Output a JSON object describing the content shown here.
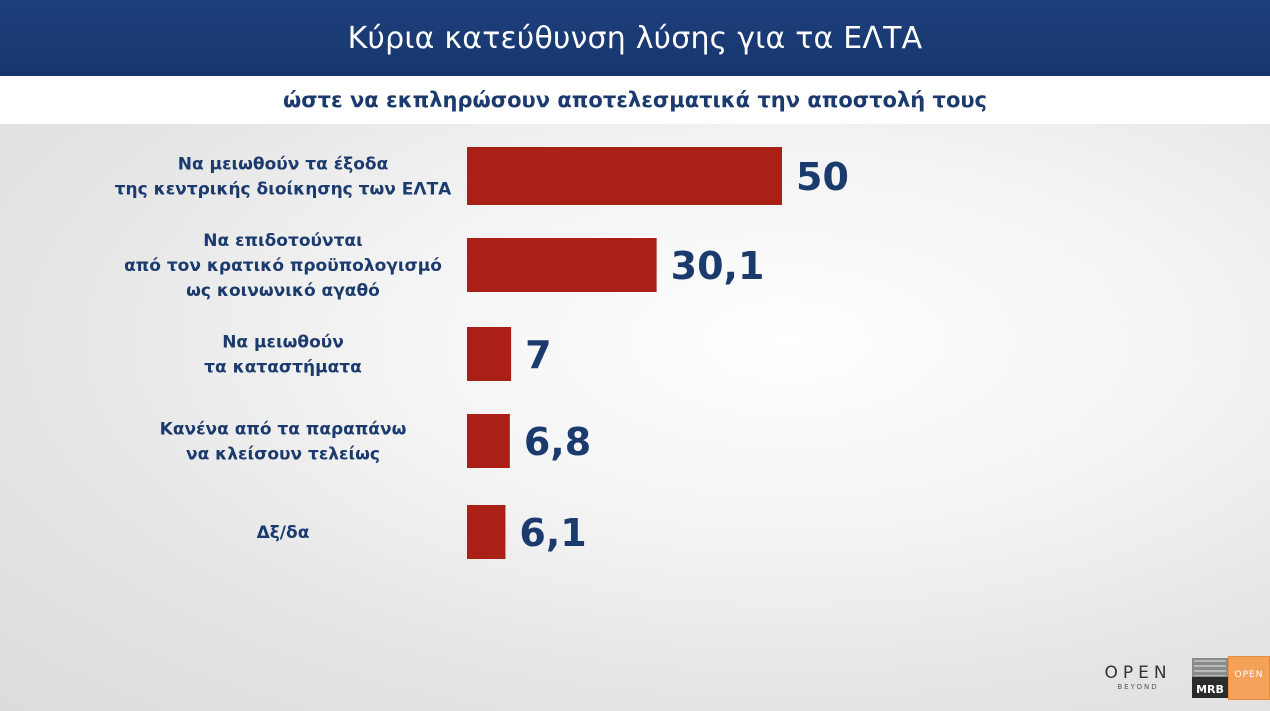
{
  "header": {
    "title": "Κύρια κατεύθυνση λύσης για τα ΕΛΤΑ",
    "subtitle": "ώστε να εκπληρώσουν αποτελεσματικά την αποστολή τους"
  },
  "chart_data": {
    "type": "bar",
    "orientation": "horizontal",
    "title": "Κύρια κατεύθυνση λύσης για τα ΕΛΤΑ",
    "subtitle": "ώστε να εκπληρώσουν αποτελεσματικά την αποστολή τους",
    "categories": [
      [
        "Να μειωθούν τα έξοδα",
        "της κεντρικής διοίκησης των ΕΛΤΑ"
      ],
      [
        "Να επιδοτούνται",
        "από τον κρατικό προϋπολογισμό",
        "ως κοινωνικό αγαθό"
      ],
      [
        "Να μειωθούν",
        "τα καταστήματα"
      ],
      [
        "Κανένα από τα παραπάνω",
        "να κλείσουν τελείως"
      ],
      [
        "Δξ/δα"
      ]
    ],
    "values": [
      50,
      30.1,
      7,
      6.8,
      6.1
    ],
    "value_labels": [
      "50",
      "30,1",
      "7",
      "6,8",
      "6,1"
    ],
    "xlim": [
      0,
      50
    ],
    "grid": false,
    "legend": "none",
    "bar_color": "#aa1f16",
    "text_color": "#1b3a6d"
  },
  "branding": {
    "open_logo": "OPEN",
    "open_tagline": "BEYOND",
    "pollster_logo": "MRB",
    "channel_badge": "OPEN"
  },
  "colors": {
    "header_bg": "#1d3f7c",
    "accent_red": "#aa1f16",
    "navy_text": "#1b3a6d",
    "badge_orange": "#f4a259"
  }
}
